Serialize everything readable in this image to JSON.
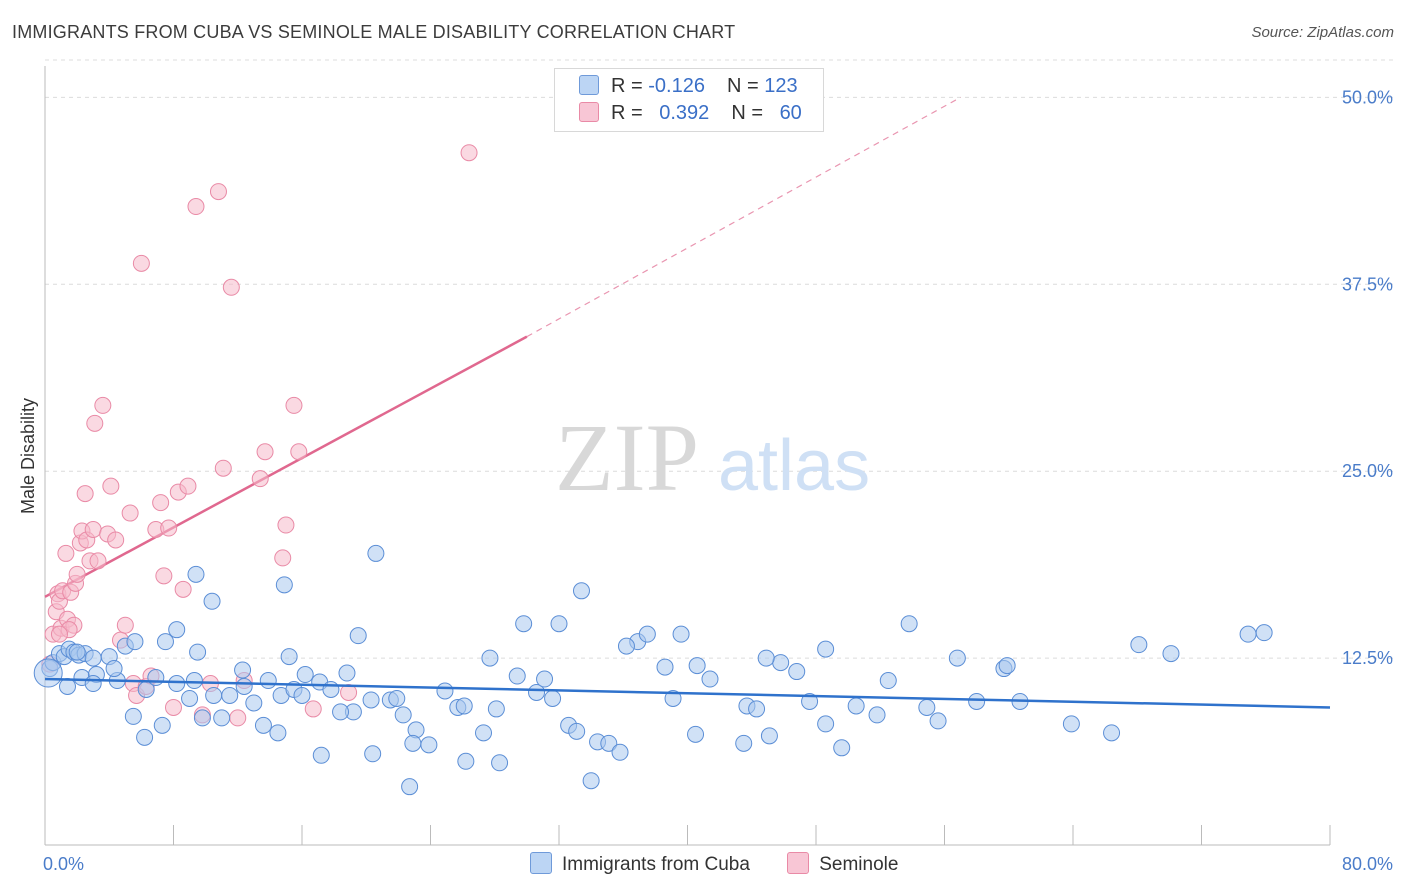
{
  "header": {
    "title": "IMMIGRANTS FROM CUBA VS SEMINOLE MALE DISABILITY CORRELATION CHART",
    "source": "Source: ZipAtlas.com"
  },
  "watermark": {
    "zip": "ZIP",
    "atlas": "atlas"
  },
  "legend": {
    "rows": [
      {
        "r_label": "R = ",
        "r_value": "-0.126",
        "n_label": "N = ",
        "n_value": "123"
      },
      {
        "r_label": "R = ",
        "r_value": "0.392",
        "n_label": "N = ",
        "n_value": "60"
      }
    ]
  },
  "bottom_legend": {
    "series1": "Immigrants from Cuba",
    "series2": "Seminole"
  },
  "colors": {
    "blue_fill": "#a9c8ef",
    "blue_stroke": "#5b8ed6",
    "blue_line": "#2f72cc",
    "pink_fill": "#f6b9cb",
    "pink_stroke": "#e98aa6",
    "pink_line": "#e0688f",
    "tick_text": "#4a7cc9",
    "grid": "#dcdcdc"
  },
  "chart_data": {
    "type": "scatter",
    "title": "IMMIGRANTS FROM CUBA VS SEMINOLE MALE DISABILITY CORRELATION CHART",
    "xlabel": "",
    "ylabel": "Male Disability",
    "xlim": [
      0,
      80
    ],
    "ylim": [
      0,
      52.5
    ],
    "x_tick_labels": [
      "0.0%",
      "80.0%"
    ],
    "y_ticks": [
      12.5,
      25.0,
      37.5,
      50.0
    ],
    "y_tick_labels": [
      "12.5%",
      "25.0%",
      "37.5%",
      "50.0%"
    ],
    "grid": "horizontal dashed",
    "legend_position": "top-center",
    "series": [
      {
        "name": "Immigrants from Cuba",
        "color": "#a9c8ef",
        "points": [
          [
            0.3,
            11.8
          ],
          [
            0.5,
            12.2
          ],
          [
            0.9,
            12.8
          ],
          [
            1.2,
            12.6
          ],
          [
            1.5,
            13.1
          ],
          [
            1.8,
            12.9
          ],
          [
            2.1,
            12.7
          ],
          [
            2.5,
            12.8
          ],
          [
            3.0,
            12.5
          ],
          [
            1.4,
            10.6
          ],
          [
            2.3,
            11.2
          ],
          [
            3.2,
            11.4
          ],
          [
            4.0,
            12.6
          ],
          [
            4.5,
            11.0
          ],
          [
            5.0,
            13.3
          ],
          [
            5.6,
            13.6
          ],
          [
            6.3,
            10.4
          ],
          [
            6.9,
            11.2
          ],
          [
            7.5,
            13.6
          ],
          [
            8.2,
            14.4
          ],
          [
            9.0,
            9.8
          ],
          [
            9.5,
            12.9
          ],
          [
            9.3,
            11.0
          ],
          [
            10.5,
            10.0
          ],
          [
            11.5,
            10.0
          ],
          [
            12.3,
            11.7
          ],
          [
            13.0,
            9.5
          ],
          [
            13.9,
            11.0
          ],
          [
            14.7,
            10.0
          ],
          [
            15.5,
            10.4
          ],
          [
            16.2,
            11.4
          ],
          [
            17.1,
            10.9
          ],
          [
            17.8,
            10.4
          ],
          [
            18.8,
            11.5
          ],
          [
            19.2,
            8.9
          ],
          [
            20.3,
            9.7
          ],
          [
            21.5,
            9.7
          ],
          [
            22.3,
            8.7
          ],
          [
            23.1,
            7.7
          ],
          [
            22.9,
            6.8
          ],
          [
            24.9,
            10.3
          ],
          [
            25.7,
            9.2
          ],
          [
            26.2,
            5.6
          ],
          [
            27.3,
            7.5
          ],
          [
            28.1,
            9.1
          ],
          [
            29.4,
            11.3
          ],
          [
            29.8,
            14.8
          ],
          [
            30.6,
            10.2
          ],
          [
            31.1,
            11.1
          ],
          [
            31.6,
            9.8
          ],
          [
            32.6,
            8.0
          ],
          [
            33.1,
            7.6
          ],
          [
            34.4,
            6.9
          ],
          [
            35.1,
            6.8
          ],
          [
            35.8,
            6.2
          ],
          [
            36.9,
            13.6
          ],
          [
            37.5,
            14.1
          ],
          [
            38.6,
            11.9
          ],
          [
            39.6,
            14.1
          ],
          [
            40.6,
            12.0
          ],
          [
            41.4,
            11.1
          ],
          [
            43.7,
            9.3
          ],
          [
            44.3,
            9.1
          ],
          [
            45.1,
            7.3
          ],
          [
            45.8,
            12.2
          ],
          [
            46.8,
            11.6
          ],
          [
            47.6,
            9.6
          ],
          [
            48.6,
            8.1
          ],
          [
            49.6,
            6.5
          ],
          [
            50.5,
            9.3
          ],
          [
            51.8,
            8.7
          ],
          [
            52.5,
            11.0
          ],
          [
            53.8,
            14.8
          ],
          [
            54.9,
            9.2
          ],
          [
            55.6,
            8.3
          ],
          [
            56.8,
            12.5
          ],
          [
            58.0,
            9.6
          ],
          [
            59.7,
            11.8
          ],
          [
            59.9,
            12.0
          ],
          [
            60.7,
            9.6
          ],
          [
            63.9,
            8.1
          ],
          [
            66.4,
            7.5
          ],
          [
            68.1,
            13.4
          ],
          [
            70.1,
            12.8
          ],
          [
            74.9,
            14.1
          ],
          [
            75.9,
            14.2
          ],
          [
            2.0,
            12.9
          ],
          [
            3.0,
            10.8
          ],
          [
            4.3,
            11.8
          ],
          [
            5.5,
            8.6
          ],
          [
            6.2,
            7.2
          ],
          [
            7.3,
            8.0
          ],
          [
            8.2,
            10.8
          ],
          [
            9.8,
            8.5
          ],
          [
            11.0,
            8.5
          ],
          [
            12.4,
            10.6
          ],
          [
            13.6,
            8.0
          ],
          [
            14.5,
            7.5
          ],
          [
            15.2,
            12.6
          ],
          [
            16.0,
            10.0
          ],
          [
            17.2,
            6.0
          ],
          [
            18.4,
            8.9
          ],
          [
            19.5,
            14.0
          ],
          [
            20.4,
            6.1
          ],
          [
            21.9,
            9.8
          ],
          [
            22.7,
            3.9
          ],
          [
            23.9,
            6.7
          ],
          [
            26.1,
            9.3
          ],
          [
            27.7,
            12.5
          ],
          [
            28.3,
            5.5
          ],
          [
            32.0,
            14.8
          ],
          [
            33.4,
            17.0
          ],
          [
            34.0,
            4.3
          ],
          [
            36.2,
            13.3
          ],
          [
            39.1,
            9.8
          ],
          [
            40.5,
            7.4
          ],
          [
            43.5,
            6.8
          ],
          [
            44.9,
            12.5
          ],
          [
            48.6,
            13.1
          ],
          [
            10.4,
            16.3
          ],
          [
            14.9,
            17.4
          ],
          [
            20.6,
            19.5
          ],
          [
            9.4,
            18.1
          ]
        ]
      },
      {
        "name": "Seminole",
        "color": "#f6b9cb",
        "points": [
          [
            0.3,
            12.1
          ],
          [
            0.5,
            14.1
          ],
          [
            0.7,
            15.6
          ],
          [
            0.8,
            16.8
          ],
          [
            0.9,
            16.3
          ],
          [
            1.0,
            14.5
          ],
          [
            1.1,
            17.0
          ],
          [
            1.3,
            19.5
          ],
          [
            1.4,
            15.1
          ],
          [
            1.6,
            16.9
          ],
          [
            1.8,
            14.7
          ],
          [
            1.9,
            17.5
          ],
          [
            2.0,
            18.1
          ],
          [
            2.2,
            20.2
          ],
          [
            2.3,
            21.0
          ],
          [
            2.5,
            23.5
          ],
          [
            2.6,
            20.4
          ],
          [
            2.8,
            19.0
          ],
          [
            3.0,
            21.1
          ],
          [
            3.1,
            28.2
          ],
          [
            3.3,
            19.0
          ],
          [
            3.6,
            29.4
          ],
          [
            3.9,
            20.8
          ],
          [
            4.1,
            24.0
          ],
          [
            4.4,
            20.4
          ],
          [
            4.7,
            13.7
          ],
          [
            5.0,
            14.7
          ],
          [
            5.3,
            22.2
          ],
          [
            5.5,
            10.8
          ],
          [
            5.7,
            10.0
          ],
          [
            6.0,
            38.9
          ],
          [
            6.3,
            10.6
          ],
          [
            6.6,
            11.3
          ],
          [
            6.9,
            21.1
          ],
          [
            7.2,
            22.9
          ],
          [
            7.4,
            18.0
          ],
          [
            7.7,
            21.2
          ],
          [
            8.0,
            9.2
          ],
          [
            8.3,
            23.6
          ],
          [
            8.6,
            17.1
          ],
          [
            8.9,
            24.0
          ],
          [
            9.4,
            42.7
          ],
          [
            9.8,
            8.7
          ],
          [
            10.3,
            10.8
          ],
          [
            10.8,
            43.7
          ],
          [
            11.1,
            25.2
          ],
          [
            11.6,
            37.3
          ],
          [
            12.0,
            8.5
          ],
          [
            12.4,
            11.0
          ],
          [
            13.4,
            24.5
          ],
          [
            13.7,
            26.3
          ],
          [
            14.8,
            19.2
          ],
          [
            15.0,
            21.4
          ],
          [
            15.5,
            29.4
          ],
          [
            15.8,
            26.3
          ],
          [
            16.7,
            9.1
          ],
          [
            18.9,
            10.2
          ],
          [
            26.4,
            46.3
          ],
          [
            1.5,
            14.4
          ],
          [
            0.9,
            14.1
          ]
        ]
      }
    ],
    "trendlines": [
      {
        "series": "Immigrants from Cuba",
        "x": [
          0,
          80
        ],
        "y": [
          11.1,
          9.2
        ]
      },
      {
        "series": "Seminole",
        "x": [
          0,
          30
        ],
        "y": [
          16.6,
          34.0
        ],
        "dashed_extension_to": [
          57.0,
          50.0
        ]
      }
    ]
  }
}
